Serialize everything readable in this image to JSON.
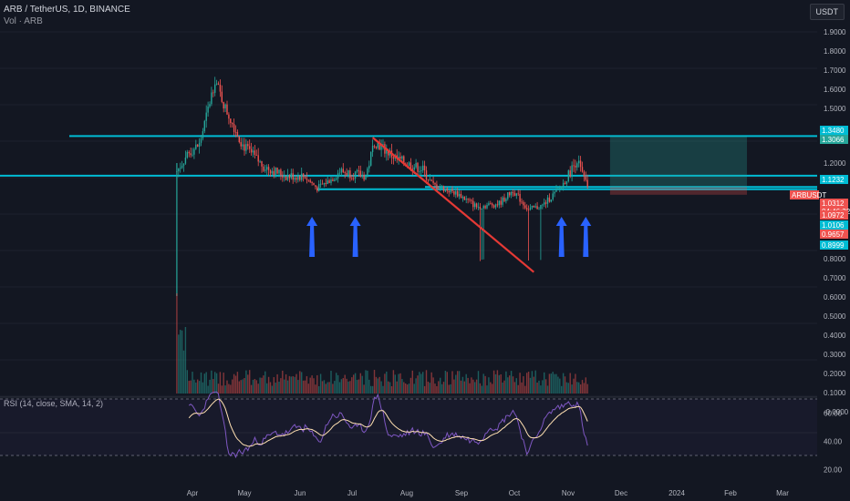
{
  "header": {
    "symbol_line": "ARB / TetherUS, 1D, BINANCE",
    "volume_line": "Vol · ARB"
  },
  "currency_button": "USDT",
  "rsi_label": "RSI (14, close, SMA, 14, 2)",
  "colors": {
    "background": "#131722",
    "up": "#26a69a",
    "down": "#ef5350",
    "level": "#00bcd4",
    "trendline": "#e53935",
    "arrow": "#2962ff",
    "rsi": "#7e57c2",
    "rsi_ma": "#ffe0b2"
  },
  "chart_data": {
    "type": "candlestick",
    "x_ticks": [
      "Apr",
      "May",
      "Jun",
      "Jul",
      "Aug",
      "Sep",
      "Oct",
      "Nov",
      "Dec",
      "2024",
      "Feb",
      "Mar"
    ],
    "y_ticks": [
      "1.9000",
      "1.8000",
      "1.7000",
      "1.6000",
      "1.5000",
      "1.2000",
      "1.1000",
      "0.8000",
      "0.7000",
      "0.6000",
      "0.5000",
      "0.4000",
      "0.3000",
      "0.2000",
      "0.1000",
      "-0.0000"
    ],
    "price_tags": [
      {
        "text": "1.3480",
        "price": 1.348,
        "color": "#00bcd4"
      },
      {
        "text": "1.3066",
        "price": 1.3066,
        "color": "#26a69a"
      },
      {
        "text": "1.1232",
        "price": 1.1232,
        "color": "#00bcd4"
      },
      {
        "text": "ARBUSDT",
        "price": 1.0312,
        "color": "#ef5350"
      },
      {
        "text": "1.0312",
        "price": 1.0312,
        "color": "#ef5350"
      },
      {
        "text": "04:46:32",
        "price": 1.0312,
        "color": "#ef5350"
      },
      {
        "text": "1.0972",
        "price": 1.0972,
        "color": "#ef5350"
      },
      {
        "text": "1.0106",
        "price": 1.0106,
        "color": "#00bcd4"
      },
      {
        "text": "0.9657",
        "price": 0.9657,
        "color": "#ef5350"
      },
      {
        "text": "0.8999",
        "price": 0.8999,
        "color": "#00bcd4"
      }
    ],
    "levels": [
      1.348,
      1.1232,
      1.0312,
      1.0106
    ],
    "trendline": {
      "start": [
        "2023-07-14",
        1.34
      ],
      "end": [
        "2023-10-15",
        0.73
      ]
    },
    "position": {
      "entry": 1.0312,
      "target": 1.348,
      "stop": 0.96,
      "start": "2023-11-28",
      "end": "2024-02-15"
    },
    "arrows": [
      "2023-06-09",
      "2023-07-04",
      "2023-10-31",
      "2023-11-14"
    ],
    "ohlc_monthly": [
      {
        "date": "2023-03-23",
        "open": 1.25,
        "high": 1.55,
        "low": 0.5,
        "close": 1.2
      },
      {
        "date": "2023-04-10",
        "open": 1.15,
        "high": 1.8,
        "low": 1.1,
        "close": 1.65
      },
      {
        "date": "2023-05-01",
        "open": 1.45,
        "high": 1.5,
        "low": 1.05,
        "close": 1.2
      },
      {
        "date": "2023-06-01",
        "open": 1.2,
        "high": 1.25,
        "low": 1.0,
        "close": 1.08
      },
      {
        "date": "2023-07-01",
        "open": 1.1,
        "high": 1.34,
        "low": 1.02,
        "close": 1.3
      },
      {
        "date": "2023-08-01",
        "open": 1.2,
        "high": 1.25,
        "low": 1.02,
        "close": 1.1
      },
      {
        "date": "2023-09-01",
        "open": 0.97,
        "high": 1.0,
        "low": 0.8,
        "close": 0.85
      },
      {
        "date": "2023-10-01",
        "open": 0.9,
        "high": 1.08,
        "low": 0.75,
        "close": 0.97
      },
      {
        "date": "2023-11-01",
        "open": 1.05,
        "high": 1.23,
        "low": 1.0,
        "close": 1.05
      }
    ],
    "rsi_ticks": [
      "60.00",
      "40.00",
      "20.00"
    ],
    "rsi_levels": [
      70,
      30
    ]
  }
}
